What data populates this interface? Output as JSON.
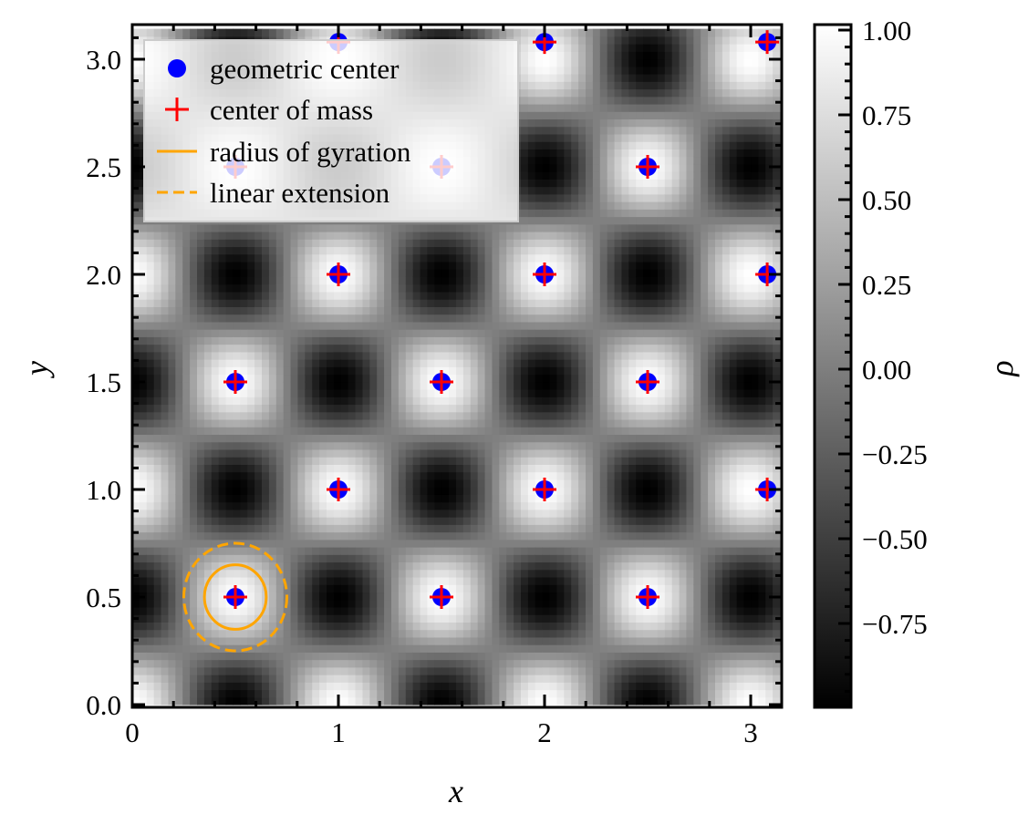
{
  "chart_data": {
    "type": "heatmap",
    "title": "",
    "xlabel": "x",
    "ylabel": "y",
    "xlim": [
      0,
      3.1416
    ],
    "ylim": [
      0,
      3.1416
    ],
    "xticks": [
      0,
      1,
      2,
      3
    ],
    "xtick_labels": [
      "0",
      "1",
      "2",
      "3"
    ],
    "yticks": [
      0.0,
      0.5,
      1.0,
      1.5,
      2.0,
      2.5,
      3.0
    ],
    "ytick_labels": [
      "0.0",
      "0.5",
      "1.0",
      "1.5",
      "2.0",
      "2.5",
      "3.0"
    ],
    "field": {
      "model": "cos(2πx)·cos(2πy)",
      "colormap": "gray",
      "vmin": -1,
      "vmax": 1
    },
    "colorbar": {
      "label": "ρ",
      "ticks": [
        1.0,
        0.75,
        0.5,
        0.25,
        0.0,
        -0.25,
        -0.5,
        -0.75
      ],
      "tick_labels": [
        "1.00",
        "0.75",
        "0.50",
        "0.25",
        "0.00",
        "−0.25",
        "−0.50",
        "−0.75"
      ]
    },
    "geometric_centers": [
      [
        0.5,
        0.5
      ],
      [
        1.5,
        0.5
      ],
      [
        2.5,
        0.5
      ],
      [
        1.0,
        1.0
      ],
      [
        2.0,
        1.0
      ],
      [
        3.08,
        1.0
      ],
      [
        0.5,
        1.5
      ],
      [
        1.5,
        1.5
      ],
      [
        2.5,
        1.5
      ],
      [
        1.0,
        2.0
      ],
      [
        2.0,
        2.0
      ],
      [
        3.08,
        2.0
      ],
      [
        0.5,
        2.5
      ],
      [
        1.5,
        2.5
      ],
      [
        2.5,
        2.5
      ],
      [
        1.0,
        3.08
      ],
      [
        2.0,
        3.08
      ],
      [
        3.08,
        3.08
      ]
    ],
    "centers_of_mass": [
      [
        0.5,
        0.5
      ],
      [
        1.5,
        0.5
      ],
      [
        2.5,
        0.5
      ],
      [
        1.0,
        1.0
      ],
      [
        2.0,
        1.0
      ],
      [
        3.08,
        1.0
      ],
      [
        0.5,
        1.5
      ],
      [
        1.5,
        1.5
      ],
      [
        2.5,
        1.5
      ],
      [
        1.0,
        2.0
      ],
      [
        2.0,
        2.0
      ],
      [
        3.08,
        2.0
      ],
      [
        0.5,
        2.5
      ],
      [
        1.5,
        2.5
      ],
      [
        2.5,
        2.5
      ],
      [
        1.0,
        3.08
      ],
      [
        2.0,
        3.08
      ],
      [
        3.08,
        3.08
      ]
    ],
    "radius_of_gyration": {
      "center": [
        0.5,
        0.5
      ],
      "radius": 0.15
    },
    "linear_extension": {
      "center": [
        0.5,
        0.5
      ],
      "radius": 0.25
    },
    "legend": {
      "placement": "top-left",
      "entries": [
        "geometric center",
        "center of mass",
        "radius of gyration",
        "linear extension"
      ]
    },
    "colors": {
      "geometric_center": "#0000ff",
      "center_of_mass": "#ff0000",
      "circles": "#ffa500"
    }
  }
}
